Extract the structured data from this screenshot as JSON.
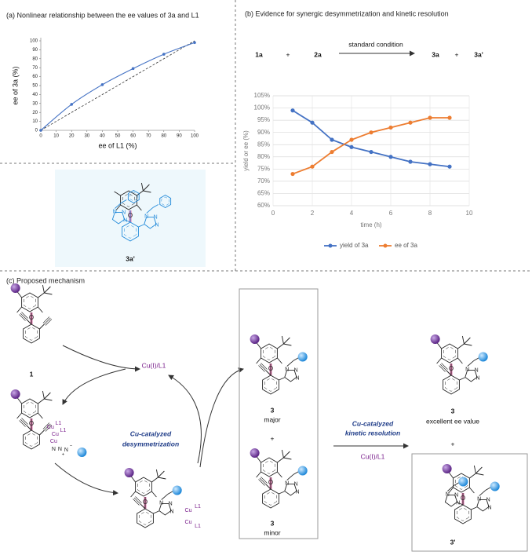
{
  "chart_data": [
    {
      "type": "scatter",
      "title": "(a) Nonlinear relationship between the ee values of 3a and L1",
      "x_label": "ee of L1 (%)",
      "y_label": "ee of 3a (%)",
      "x": [
        0,
        20,
        40,
        60,
        80,
        100
      ],
      "values": [
        0,
        29,
        51,
        69,
        85,
        98
      ],
      "color": "#4472c4",
      "xlim": [
        0,
        100
      ],
      "xticks": [
        0,
        10,
        20,
        30,
        40,
        50,
        60,
        70,
        80,
        90,
        100
      ],
      "ylim": [
        0,
        100
      ],
      "yticks": [
        0,
        10,
        20,
        30,
        40,
        50,
        60,
        70,
        80,
        90,
        100
      ],
      "trendline": true,
      "diagonal": true,
      "grid": false
    },
    {
      "type": "line",
      "title": "(b) Evidence for synergic desymmetrization and kinetic resolution",
      "x_label": "time (h)",
      "y_label": "yield or ee (%)",
      "x": [
        1,
        2,
        3,
        4,
        5,
        6,
        7,
        8,
        9
      ],
      "series": [
        {
          "name": "yield of 3a",
          "color": "#4472c4",
          "values": [
            99,
            94,
            87,
            84,
            82,
            80,
            78,
            77,
            76
          ]
        },
        {
          "name": "ee of 3a",
          "color": "#ed7d31",
          "values": [
            73,
            76,
            82,
            87,
            90,
            92,
            94,
            96,
            96
          ]
        }
      ],
      "xlim": [
        0,
        10
      ],
      "xticks": [
        0,
        2,
        4,
        6,
        8,
        10
      ],
      "ylim": [
        60,
        105
      ],
      "yticks": [
        {
          "value": 60,
          "label": "60%"
        },
        {
          "value": 65,
          "label": "65%"
        },
        {
          "value": 70,
          "label": "70%"
        },
        {
          "value": 75,
          "label": "75%"
        },
        {
          "value": 80,
          "label": "80%"
        },
        {
          "value": 85,
          "label": "85%"
        },
        {
          "value": 90,
          "label": "90%"
        },
        {
          "value": 95,
          "label": "95%"
        },
        {
          "value": 100,
          "label": "100%"
        },
        {
          "value": 105,
          "label": "105%"
        }
      ],
      "grid": true,
      "legend": "bottom"
    }
  ],
  "scheme": {
    "reactant_1": "1a",
    "plus_1": "+",
    "reactant_2": "2a",
    "condition": "standard condition",
    "product_1": "3a",
    "plus_2": "+",
    "product_2": "3a'"
  },
  "structure_label": "3a'",
  "atoms": {
    "o": "O",
    "n": "N",
    "cu": "Cu",
    "l1": "L1",
    "plus": "+",
    "minus": "−"
  },
  "mechanism": {
    "title": "(c) Proposed mechanism",
    "start_label": "1",
    "catalyst_1": "Cu(I)/L1",
    "step_1": [
      "Cu-catalyzed",
      "desymmetrization"
    ],
    "major_label": "3",
    "major_note": "major",
    "plus_1": "+",
    "minor_label": "3",
    "minor_note": "minor",
    "step_2": [
      "Cu-catalyzed",
      "kinetic resolution"
    ],
    "catalyst_2": "Cu(I)/L1",
    "result_label": "3",
    "result_note": "excellent ee value",
    "plus_2": "+",
    "byproduct_label": "3'"
  }
}
